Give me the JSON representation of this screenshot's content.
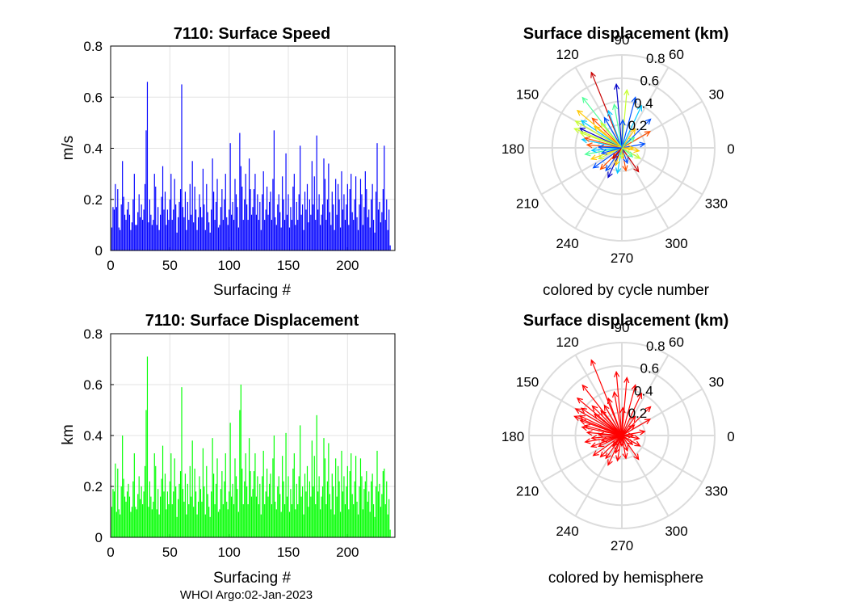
{
  "footer": "WHOI Argo:02-Jan-2023",
  "chart_data": [
    {
      "id": "speed",
      "type": "bar",
      "title": "7110: Surface Speed",
      "xlabel": "Surfacing #",
      "ylabel": "m/s",
      "xlim": [
        0,
        240
      ],
      "ylim": [
        0,
        0.8
      ],
      "xticks": [
        "0",
        "50",
        "100",
        "150",
        "200"
      ],
      "yticks": [
        "0",
        "0.2",
        "0.4",
        "0.6",
        "0.8"
      ],
      "grid": true,
      "color": "#0000ff",
      "x_start": 1,
      "values": [
        0.09,
        0.17,
        0.16,
        0.26,
        0.17,
        0.24,
        0.09,
        0.08,
        0.18,
        0.35,
        0.21,
        0.14,
        0.12,
        0.16,
        0.19,
        0.14,
        0.08,
        0.11,
        0.2,
        0.3,
        0.1,
        0.1,
        0.15,
        0.22,
        0.13,
        0.18,
        0.12,
        0.16,
        0.26,
        0.47,
        0.66,
        0.11,
        0.2,
        0.14,
        0.1,
        0.12,
        0.3,
        0.25,
        0.1,
        0.17,
        0.08,
        0.14,
        0.21,
        0.33,
        0.16,
        0.23,
        0.1,
        0.16,
        0.12,
        0.2,
        0.3,
        0.12,
        0.16,
        0.28,
        0.18,
        0.07,
        0.13,
        0.19,
        0.24,
        0.65,
        0.17,
        0.13,
        0.23,
        0.08,
        0.19,
        0.12,
        0.26,
        0.14,
        0.35,
        0.11,
        0.25,
        0.16,
        0.08,
        0.13,
        0.22,
        0.17,
        0.13,
        0.32,
        0.18,
        0.08,
        0.26,
        0.15,
        0.11,
        0.07,
        0.16,
        0.36,
        0.23,
        0.12,
        0.19,
        0.28,
        0.09,
        0.1,
        0.17,
        0.24,
        0.12,
        0.2,
        0.3,
        0.13,
        0.1,
        0.16,
        0.42,
        0.14,
        0.19,
        0.12,
        0.28,
        0.22,
        0.17,
        0.09,
        0.46,
        0.33,
        0.25,
        0.12,
        0.2,
        0.3,
        0.18,
        0.12,
        0.36,
        0.24,
        0.14,
        0.17,
        0.24,
        0.3,
        0.14,
        0.22,
        0.12,
        0.19,
        0.08,
        0.22,
        0.31,
        0.12,
        0.16,
        0.25,
        0.14,
        0.19,
        0.23,
        0.12,
        0.28,
        0.47,
        0.13,
        0.1,
        0.18,
        0.22,
        0.15,
        0.09,
        0.29,
        0.2,
        0.12,
        0.38,
        0.14,
        0.22,
        0.09,
        0.17,
        0.12,
        0.25,
        0.3,
        0.1,
        0.19,
        0.12,
        0.22,
        0.41,
        0.14,
        0.18,
        0.08,
        0.23,
        0.16,
        0.26,
        0.11,
        0.2,
        0.14,
        0.35,
        0.18,
        0.29,
        0.12,
        0.45,
        0.16,
        0.22,
        0.1,
        0.14,
        0.18,
        0.36,
        0.28,
        0.12,
        0.2,
        0.34,
        0.15,
        0.1,
        0.23,
        0.18,
        0.08,
        0.28,
        0.14,
        0.26,
        0.2,
        0.09,
        0.31,
        0.16,
        0.22,
        0.12,
        0.18,
        0.26,
        0.1,
        0.24,
        0.3,
        0.15,
        0.12,
        0.2,
        0.29,
        0.13,
        0.08,
        0.18,
        0.28,
        0.22,
        0.1,
        0.17,
        0.31,
        0.24,
        0.13,
        0.16,
        0.09,
        0.2,
        0.26,
        0.12,
        0.07,
        0.23,
        0.42,
        0.16,
        0.19,
        0.11,
        0.15,
        0.24,
        0.41,
        0.12,
        0.2,
        0.08,
        0.16,
        0.02
      ]
    },
    {
      "id": "displacement",
      "type": "bar",
      "title": "7110: Surface Displacement",
      "xlabel": "Surfacing #",
      "ylabel": "km",
      "xlim": [
        0,
        240
      ],
      "ylim": [
        0,
        0.8
      ],
      "xticks": [
        "0",
        "50",
        "100",
        "150",
        "200"
      ],
      "yticks": [
        "0",
        "0.2",
        "0.4",
        "0.6",
        "0.8"
      ],
      "grid": true,
      "color": "#00ff00",
      "x_start": 1,
      "values": [
        0.12,
        0.19,
        0.18,
        0.29,
        0.1,
        0.27,
        0.11,
        0.09,
        0.2,
        0.4,
        0.23,
        0.16,
        0.14,
        0.18,
        0.21,
        0.16,
        0.1,
        0.12,
        0.22,
        0.33,
        0.12,
        0.11,
        0.17,
        0.24,
        0.15,
        0.2,
        0.13,
        0.18,
        0.28,
        0.5,
        0.71,
        0.12,
        0.22,
        0.16,
        0.11,
        0.14,
        0.33,
        0.28,
        0.11,
        0.19,
        0.09,
        0.16,
        0.23,
        0.36,
        0.18,
        0.25,
        0.11,
        0.18,
        0.13,
        0.22,
        0.33,
        0.13,
        0.18,
        0.31,
        0.2,
        0.08,
        0.15,
        0.21,
        0.26,
        0.59,
        0.19,
        0.14,
        0.25,
        0.09,
        0.21,
        0.13,
        0.28,
        0.16,
        0.38,
        0.12,
        0.27,
        0.18,
        0.09,
        0.14,
        0.24,
        0.19,
        0.14,
        0.35,
        0.2,
        0.09,
        0.28,
        0.17,
        0.12,
        0.08,
        0.18,
        0.39,
        0.25,
        0.13,
        0.21,
        0.31,
        0.1,
        0.11,
        0.19,
        0.26,
        0.13,
        0.22,
        0.33,
        0.14,
        0.11,
        0.18,
        0.45,
        0.16,
        0.21,
        0.13,
        0.31,
        0.24,
        0.19,
        0.1,
        0.5,
        0.6,
        0.27,
        0.13,
        0.22,
        0.33,
        0.2,
        0.13,
        0.39,
        0.26,
        0.16,
        0.19,
        0.26,
        0.33,
        0.16,
        0.24,
        0.13,
        0.21,
        0.09,
        0.24,
        0.34,
        0.13,
        0.18,
        0.27,
        0.16,
        0.21,
        0.25,
        0.13,
        0.31,
        0.4,
        0.14,
        0.11,
        0.2,
        0.24,
        0.17,
        0.1,
        0.32,
        0.22,
        0.13,
        0.41,
        0.16,
        0.24,
        0.1,
        0.19,
        0.13,
        0.27,
        0.33,
        0.11,
        0.21,
        0.13,
        0.24,
        0.44,
        0.16,
        0.2,
        0.09,
        0.25,
        0.18,
        0.28,
        0.12,
        0.22,
        0.16,
        0.38,
        0.2,
        0.32,
        0.13,
        0.48,
        0.18,
        0.24,
        0.11,
        0.16,
        0.2,
        0.39,
        0.31,
        0.13,
        0.22,
        0.37,
        0.17,
        0.11,
        0.25,
        0.2,
        0.09,
        0.31,
        0.16,
        0.28,
        0.22,
        0.1,
        0.34,
        0.18,
        0.24,
        0.13,
        0.2,
        0.28,
        0.11,
        0.26,
        0.33,
        0.17,
        0.13,
        0.22,
        0.32,
        0.14,
        0.09,
        0.2,
        0.31,
        0.24,
        0.11,
        0.19,
        0.22,
        0.26,
        0.14,
        0.18,
        0.1,
        0.22,
        0.25,
        0.13,
        0.08,
        0.2,
        0.34,
        0.18,
        0.21,
        0.12,
        0.17,
        0.26,
        0.27,
        0.13,
        0.22,
        0.09,
        0.15,
        0.03
      ]
    },
    {
      "id": "polar-cycle",
      "type": "polar-quiver",
      "title": "Surface displacement (km)",
      "caption": "colored by cycle number",
      "angle_ticks": [
        "0",
        "30",
        "60",
        "90",
        "120",
        "150",
        "180",
        "210",
        "240",
        "270",
        "300",
        "330"
      ],
      "angle_tick_values_deg": [
        0,
        30,
        60,
        90,
        120,
        150,
        180,
        210,
        240,
        270,
        300,
        330
      ],
      "radius_ticks": [
        "0.2",
        "0.4",
        "0.6",
        "0.8"
      ],
      "radius_tick_values": [
        0.2,
        0.4,
        0.6,
        0.8
      ],
      "rlim": [
        0,
        0.8
      ],
      "color_by": "cycle",
      "colormap": [
        "#0000c8",
        "#0050ff",
        "#00c8ff",
        "#50ff9a",
        "#c8ff32",
        "#ffc800",
        "#ff5000",
        "#c80000"
      ],
      "vectors": [
        {
          "r": 0.7,
          "theta": 112,
          "c": 0.95
        },
        {
          "r": 0.55,
          "theta": 128,
          "c": 0.4
        },
        {
          "r": 0.5,
          "theta": 140,
          "c": 0.7
        },
        {
          "r": 0.46,
          "theta": 150,
          "c": 0.55
        },
        {
          "r": 0.42,
          "theta": 146,
          "c": 0.35
        },
        {
          "r": 0.38,
          "theta": 160,
          "c": 0.6
        },
        {
          "r": 0.35,
          "theta": 168,
          "c": 0.25
        },
        {
          "r": 0.3,
          "theta": 175,
          "c": 0.8
        },
        {
          "r": 0.32,
          "theta": 190,
          "c": 0.45
        },
        {
          "r": 0.28,
          "theta": 200,
          "c": 0.65
        },
        {
          "r": 0.3,
          "theta": 215,
          "c": 0.15
        },
        {
          "r": 0.26,
          "theta": 225,
          "c": 0.9
        },
        {
          "r": 0.28,
          "theta": 245,
          "c": 0.05
        },
        {
          "r": 0.22,
          "theta": 260,
          "c": 0.3
        },
        {
          "r": 0.2,
          "theta": 280,
          "c": 0.85
        },
        {
          "r": 0.25,
          "theta": 305,
          "c": 0.98
        },
        {
          "r": 0.18,
          "theta": 330,
          "c": 0.5
        },
        {
          "r": 0.15,
          "theta": 350,
          "c": 0.75
        },
        {
          "r": 0.2,
          "theta": 10,
          "c": 0.1
        },
        {
          "r": 0.28,
          "theta": 30,
          "c": 0.92
        },
        {
          "r": 0.35,
          "theta": 45,
          "c": 0.08
        },
        {
          "r": 0.4,
          "theta": 65,
          "c": 0.3
        },
        {
          "r": 0.45,
          "theta": 75,
          "c": 0.2
        },
        {
          "r": 0.5,
          "theta": 85,
          "c": 0.6
        },
        {
          "r": 0.38,
          "theta": 100,
          "c": 0.45
        },
        {
          "r": 0.55,
          "theta": 95,
          "c": 0.02
        },
        {
          "r": 0.3,
          "theta": 120,
          "c": 0.15
        },
        {
          "r": 0.36,
          "theta": 135,
          "c": 0.85
        },
        {
          "r": 0.4,
          "theta": 155,
          "c": 0.05
        },
        {
          "r": 0.26,
          "theta": 185,
          "c": 0.35
        },
        {
          "r": 0.22,
          "theta": 205,
          "c": 0.55
        },
        {
          "r": 0.24,
          "theta": 235,
          "c": 0.12
        },
        {
          "r": 0.16,
          "theta": 250,
          "c": 0.7
        },
        {
          "r": 0.14,
          "theta": 290,
          "c": 0.2
        },
        {
          "r": 0.12,
          "theta": 320,
          "c": 0.4
        },
        {
          "r": 0.1,
          "theta": 0,
          "c": 0.65
        },
        {
          "r": 0.2,
          "theta": 55,
          "c": 0.75
        },
        {
          "r": 0.34,
          "theta": 110,
          "c": 0.25
        },
        {
          "r": 0.28,
          "theta": 130,
          "c": 0.5
        },
        {
          "r": 0.33,
          "theta": 165,
          "c": 0.9
        },
        {
          "r": 0.18,
          "theta": 195,
          "c": 0.1
        },
        {
          "r": 0.12,
          "theta": 230,
          "c": 0.95
        },
        {
          "r": 0.09,
          "theta": 270,
          "c": 0.6
        },
        {
          "r": 0.14,
          "theta": 40,
          "c": 0.45
        },
        {
          "r": 0.24,
          "theta": 88,
          "c": 0.18
        },
        {
          "r": 0.3,
          "theta": 142,
          "c": 0.78
        },
        {
          "r": 0.44,
          "theta": 158,
          "c": 0.62
        },
        {
          "r": 0.2,
          "theta": 178,
          "c": 0.08
        }
      ]
    },
    {
      "id": "polar-hemisphere",
      "type": "polar-quiver",
      "title": "Surface displacement (km)",
      "caption": "colored by hemisphere",
      "angle_ticks": [
        "0",
        "30",
        "60",
        "90",
        "120",
        "150",
        "180",
        "210",
        "240",
        "270",
        "300",
        "330"
      ],
      "angle_tick_values_deg": [
        0,
        30,
        60,
        90,
        120,
        150,
        180,
        210,
        240,
        270,
        300,
        330
      ],
      "radius_ticks": [
        "0.2",
        "0.4",
        "0.6",
        "0.8"
      ],
      "radius_tick_values": [
        0.2,
        0.4,
        0.6,
        0.8
      ],
      "rlim": [
        0,
        0.8
      ],
      "color_by": "hemisphere",
      "color": "#ff0000",
      "vectors": [
        {
          "r": 0.7,
          "theta": 112
        },
        {
          "r": 0.55,
          "theta": 128
        },
        {
          "r": 0.5,
          "theta": 140
        },
        {
          "r": 0.46,
          "theta": 150
        },
        {
          "r": 0.42,
          "theta": 146
        },
        {
          "r": 0.38,
          "theta": 160
        },
        {
          "r": 0.35,
          "theta": 168
        },
        {
          "r": 0.3,
          "theta": 175
        },
        {
          "r": 0.32,
          "theta": 190
        },
        {
          "r": 0.28,
          "theta": 200
        },
        {
          "r": 0.3,
          "theta": 215
        },
        {
          "r": 0.26,
          "theta": 225
        },
        {
          "r": 0.28,
          "theta": 245
        },
        {
          "r": 0.22,
          "theta": 260
        },
        {
          "r": 0.2,
          "theta": 280
        },
        {
          "r": 0.25,
          "theta": 305
        },
        {
          "r": 0.18,
          "theta": 330
        },
        {
          "r": 0.15,
          "theta": 350
        },
        {
          "r": 0.2,
          "theta": 10
        },
        {
          "r": 0.28,
          "theta": 30
        },
        {
          "r": 0.35,
          "theta": 45
        },
        {
          "r": 0.4,
          "theta": 65
        },
        {
          "r": 0.45,
          "theta": 75
        },
        {
          "r": 0.5,
          "theta": 85
        },
        {
          "r": 0.38,
          "theta": 100
        },
        {
          "r": 0.55,
          "theta": 95
        },
        {
          "r": 0.3,
          "theta": 120
        },
        {
          "r": 0.36,
          "theta": 135
        },
        {
          "r": 0.4,
          "theta": 155
        },
        {
          "r": 0.26,
          "theta": 185
        },
        {
          "r": 0.22,
          "theta": 205
        },
        {
          "r": 0.24,
          "theta": 235
        },
        {
          "r": 0.16,
          "theta": 250
        },
        {
          "r": 0.14,
          "theta": 290
        },
        {
          "r": 0.12,
          "theta": 320
        },
        {
          "r": 0.1,
          "theta": 0
        },
        {
          "r": 0.2,
          "theta": 55
        },
        {
          "r": 0.34,
          "theta": 110
        },
        {
          "r": 0.28,
          "theta": 130
        },
        {
          "r": 0.33,
          "theta": 165
        },
        {
          "r": 0.18,
          "theta": 195
        },
        {
          "r": 0.12,
          "theta": 230
        },
        {
          "r": 0.09,
          "theta": 270
        },
        {
          "r": 0.14,
          "theta": 40
        },
        {
          "r": 0.24,
          "theta": 88
        },
        {
          "r": 0.3,
          "theta": 142
        },
        {
          "r": 0.44,
          "theta": 158
        },
        {
          "r": 0.2,
          "theta": 178
        }
      ]
    }
  ]
}
